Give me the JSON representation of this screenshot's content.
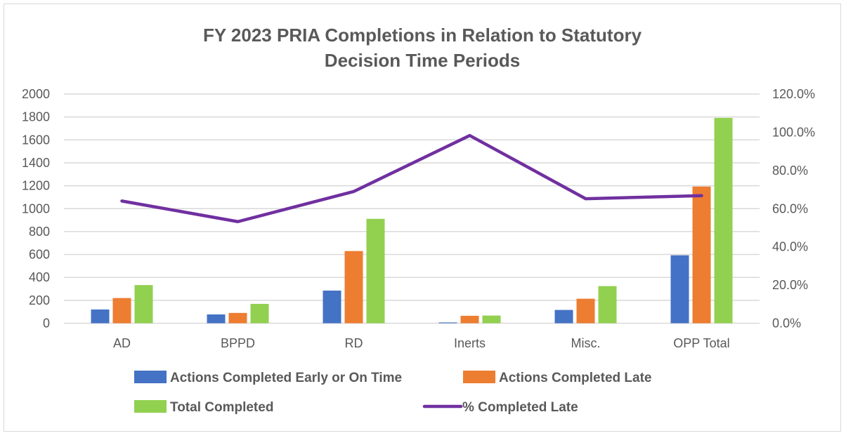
{
  "chart_data": {
    "type": "bar",
    "title_lines": [
      "FY 2023 PRIA Completions in Relation to Statutory",
      "Decision Time Periods"
    ],
    "categories": [
      "AD",
      "BPPD",
      "RD",
      "Inerts",
      "Misc.",
      "OPP Total"
    ],
    "series": [
      {
        "name": "Actions Completed Early or On Time",
        "type": "bar",
        "axis": "left",
        "color": "#4472C4",
        "values": [
          120,
          77,
          285,
          7,
          116,
          593
        ]
      },
      {
        "name": "Actions Completed Late",
        "type": "bar",
        "axis": "left",
        "color": "#ED7D31",
        "values": [
          220,
          90,
          630,
          65,
          214,
          1193
        ]
      },
      {
        "name": "Total Completed",
        "type": "bar",
        "axis": "left",
        "color": "#92D050",
        "values": [
          333,
          169,
          911,
          67,
          324,
          1792
        ]
      },
      {
        "name": "% Completed Late",
        "type": "line",
        "axis": "right",
        "color": "#7030A0",
        "values": [
          64.0,
          53.2,
          69.0,
          98.3,
          65.2,
          66.8
        ]
      }
    ],
    "y_left": {
      "min": 0,
      "max": 2000,
      "step": 200,
      "ticks": [
        "0",
        "200",
        "400",
        "600",
        "800",
        "1000",
        "1200",
        "1400",
        "1600",
        "1800",
        "2000"
      ]
    },
    "y_right": {
      "min": 0,
      "max": 120,
      "step": 20,
      "ticks": [
        "0.0%",
        "20.0%",
        "40.0%",
        "60.0%",
        "80.0%",
        "100.0%",
        "120.0%"
      ]
    },
    "grid": true,
    "legend_position": "bottom"
  }
}
